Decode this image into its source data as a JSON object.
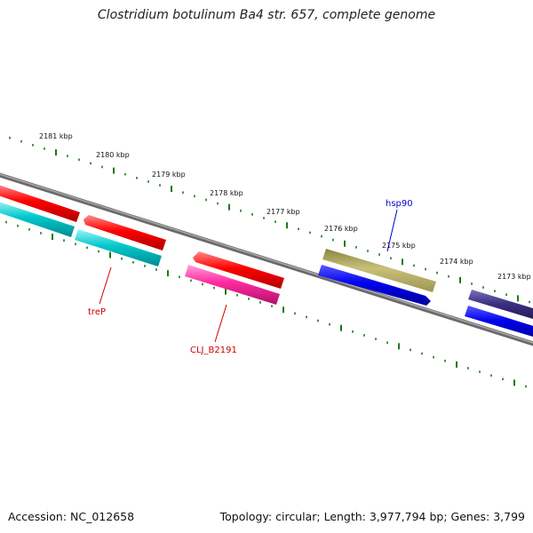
{
  "title": "Clostridium botulinum Ba4 str. 657, complete genome",
  "footer": {
    "accession": "Accession: NC_012658",
    "summary": "Topology: circular; Length: 3,977,794 bp; Genes: 3,799"
  },
  "colors": {
    "backbone": "#888888",
    "tick": "#1a7a1a",
    "red_label": "#cc0000",
    "blue_label": "#0000cc"
  },
  "kbp_ticks": [
    {
      "label": "2181 kbp"
    },
    {
      "label": "2180 kbp"
    },
    {
      "label": "2179 kbp"
    },
    {
      "label": "2178 kbp"
    },
    {
      "label": "2177 kbp"
    },
    {
      "label": "2176 kbp"
    },
    {
      "label": "2175 kbp"
    },
    {
      "label": "2174 kbp"
    },
    {
      "label": "2173 kbp"
    }
  ],
  "genes": [
    {
      "name": "",
      "color": "#ff0000"
    },
    {
      "name": "",
      "color": "#00c8cc"
    },
    {
      "name": "treP",
      "color": "#ff0000"
    },
    {
      "name": "",
      "color": "#00c8cc"
    },
    {
      "name": "CLJ_B2191",
      "color": "#ff0000"
    },
    {
      "name": "",
      "color": "#ff2aa0"
    },
    {
      "name": "hsp90",
      "color": "#c8c07a"
    },
    {
      "name": "",
      "color": "#0000ee"
    },
    {
      "name": "",
      "color": "#3a2f80"
    },
    {
      "name": "",
      "color": "#0000ee"
    }
  ]
}
